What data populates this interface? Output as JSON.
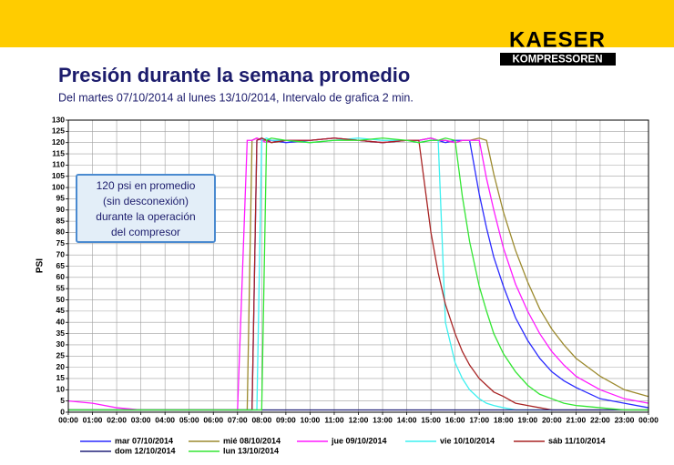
{
  "header": {
    "brand": "KAESER",
    "tagline": "KOMPRESSOREN"
  },
  "chart_data": {
    "type": "line",
    "title": "Presión durante la semana promedio",
    "subtitle": "Del martes 07/10/2014 al lunes 13/10/2014,  Intervalo de grafica 2 min.",
    "y_label": "PSI",
    "annotation": [
      "120 psi en promedio",
      "(sin desconexión)",
      "durante la operación",
      "del compresor"
    ],
    "grid": true,
    "legend": "bottom",
    "xlim": [
      0,
      24
    ],
    "ylim": [
      0,
      130
    ],
    "yticks": [
      0,
      5,
      10,
      15,
      20,
      25,
      30,
      35,
      40,
      45,
      50,
      55,
      60,
      65,
      70,
      75,
      80,
      85,
      90,
      95,
      100,
      105,
      110,
      115,
      120,
      125,
      130
    ],
    "xticks": [
      {
        "value": 0,
        "label": "00:00"
      },
      {
        "value": 1,
        "label": "01:00"
      },
      {
        "value": 2,
        "label": "02:00"
      },
      {
        "value": 3,
        "label": "03:00"
      },
      {
        "value": 4,
        "label": "04:00"
      },
      {
        "value": 5,
        "label": "05:00"
      },
      {
        "value": 6,
        "label": "06:00"
      },
      {
        "value": 7,
        "label": "07:00"
      },
      {
        "value": 8,
        "label": "08:00"
      },
      {
        "value": 9,
        "label": "09:00"
      },
      {
        "value": 10,
        "label": "10:00"
      },
      {
        "value": 11,
        "label": "11:00"
      },
      {
        "value": 12,
        "label": "12:00"
      },
      {
        "value": 13,
        "label": "13:00"
      },
      {
        "value": 14,
        "label": "14:00"
      },
      {
        "value": 15,
        "label": "15:00"
      },
      {
        "value": 16,
        "label": "16:00"
      },
      {
        "value": 17,
        "label": "17:00"
      },
      {
        "value": 18,
        "label": "18:00"
      },
      {
        "value": 19,
        "label": "19:00"
      },
      {
        "value": 20,
        "label": "20:00"
      },
      {
        "value": 21,
        "label": "21:00"
      },
      {
        "value": 22,
        "label": "22:00"
      },
      {
        "value": 23,
        "label": "23:00"
      },
      {
        "value": 24,
        "label": "00:00"
      }
    ],
    "x": [
      0,
      1,
      2,
      3,
      4,
      5,
      6,
      7,
      7.4,
      7.6,
      7.8,
      8,
      8.2,
      8.4,
      9,
      10,
      11,
      12,
      13,
      14,
      14.5,
      15,
      15.3,
      15.6,
      16,
      16.3,
      16.6,
      17,
      17.3,
      17.6,
      18,
      18.5,
      19,
      19.5,
      20,
      20.5,
      21,
      22,
      23,
      24
    ],
    "series": [
      {
        "name": "mar 07/10/2014",
        "color": "#2a2aff",
        "values": [
          1,
          1,
          1,
          1,
          1,
          1,
          1,
          1,
          1,
          1,
          121,
          122,
          121,
          121,
          120,
          121,
          122,
          121,
          120,
          121,
          121,
          122,
          121,
          120,
          121,
          121,
          121,
          97,
          82,
          69,
          56,
          42,
          32,
          24,
          18,
          14,
          11,
          6,
          4,
          2
        ]
      },
      {
        "name": "mié 08/10/2014",
        "color": "#9c8a2e",
        "values": [
          1,
          1,
          1,
          1,
          1,
          1,
          1,
          1,
          1,
          121,
          122,
          121,
          121,
          120,
          121,
          121,
          122,
          121,
          120,
          121,
          121,
          122,
          121,
          121,
          120,
          121,
          121,
          122,
          121,
          106,
          89,
          72,
          58,
          46,
          37,
          30,
          24,
          16,
          10,
          7
        ]
      },
      {
        "name": "jue 09/10/2014",
        "color": "#ff1aff",
        "values": [
          5,
          4,
          2,
          1,
          1,
          1,
          1,
          1,
          121,
          121,
          122,
          121,
          120,
          121,
          121,
          121,
          122,
          121,
          120,
          121,
          121,
          122,
          121,
          121,
          120,
          121,
          121,
          121,
          104,
          90,
          73,
          57,
          45,
          35,
          27,
          21,
          16,
          10,
          6,
          4
        ]
      },
      {
        "name": "vie 10/10/2014",
        "color": "#3cf0f0",
        "values": [
          1,
          1,
          1,
          1,
          1,
          1,
          1,
          1,
          1,
          1,
          1,
          121,
          122,
          121,
          121,
          120,
          121,
          122,
          121,
          121,
          120,
          121,
          121,
          40,
          22,
          15,
          10,
          6,
          4,
          3,
          2,
          1,
          1,
          1,
          1,
          1,
          1,
          1,
          1,
          1
        ]
      },
      {
        "name": "sáb 11/10/2014",
        "color": "#a82424",
        "values": [
          1,
          1,
          1,
          1,
          1,
          1,
          1,
          1,
          1,
          1,
          121,
          122,
          121,
          120,
          121,
          121,
          122,
          121,
          120,
          121,
          121,
          80,
          62,
          48,
          35,
          27,
          21,
          15,
          12,
          9,
          7,
          4,
          3,
          2,
          1,
          1,
          1,
          1,
          1,
          1
        ]
      },
      {
        "name": "dom 12/10/2014",
        "color": "#22227a",
        "values": [
          1,
          1,
          1,
          1,
          1,
          1,
          1,
          1,
          1,
          1,
          1,
          1,
          1,
          1,
          1,
          1,
          1,
          1,
          1,
          1,
          1,
          1,
          1,
          1,
          1,
          1,
          1,
          1,
          1,
          1,
          1,
          1,
          1,
          1,
          1,
          1,
          1,
          1,
          1,
          1
        ]
      },
      {
        "name": "lun 13/10/2014",
        "color": "#33e633",
        "values": [
          1,
          1,
          1,
          1,
          1,
          1,
          1,
          1,
          1,
          1,
          1,
          1,
          121,
          122,
          121,
          120,
          121,
          121,
          122,
          121,
          120,
          121,
          121,
          122,
          121,
          96,
          76,
          56,
          45,
          35,
          26,
          18,
          12,
          8,
          6,
          4,
          3,
          2,
          1,
          1
        ]
      }
    ]
  }
}
